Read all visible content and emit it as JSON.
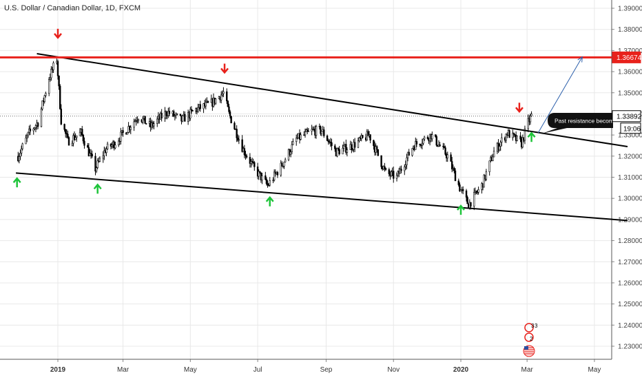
{
  "chart_data": {
    "type": "candlestick",
    "title": "U.S. Dollar / Canadian Dollar, 1D, FXCM",
    "y_axis": {
      "side": "right",
      "ticks": [
        "1.39000",
        "1.38000",
        "1.37000",
        "1.36000",
        "1.35000",
        "1.34000",
        "1.33000",
        "1.32000",
        "1.31000",
        "1.30000",
        "1.29000",
        "1.28000",
        "1.27000",
        "1.26000",
        "1.25000",
        "1.24000",
        "1.23000"
      ],
      "range": [
        1.2265,
        1.3935
      ]
    },
    "x_axis": {
      "ticks": [
        "2019",
        "Mar",
        "May",
        "Jul",
        "Sep",
        "Nov",
        "2020",
        "Mar",
        "May"
      ],
      "bold_ticks": [
        "2019",
        "2020"
      ]
    },
    "price_labels": {
      "resistance": "1.36674",
      "last": "1.33892",
      "countdown": "19:06"
    },
    "resistance_level": 1.36674,
    "last_price": 1.33892,
    "annotation": "Past resistance becomes",
    "badge_top": "3",
    "badge_bottom": "2",
    "price_path": [
      [
        "2018-11-26",
        1.32
      ],
      [
        "2018-12-06",
        1.331
      ],
      [
        "2018-12-14",
        1.336
      ],
      [
        "2018-12-24",
        1.357
      ],
      [
        "2018-12-31",
        1.366
      ],
      [
        "2019-01-04",
        1.337
      ],
      [
        "2019-01-10",
        1.327
      ],
      [
        "2019-01-22",
        1.331
      ],
      [
        "2019-02-04",
        1.314
      ],
      [
        "2019-02-13",
        1.323
      ],
      [
        "2019-02-21",
        1.326
      ],
      [
        "2019-03-05",
        1.333
      ],
      [
        "2019-03-15",
        1.339
      ],
      [
        "2019-03-26",
        1.334
      ],
      [
        "2019-04-10",
        1.341
      ],
      [
        "2019-04-23",
        1.337
      ],
      [
        "2019-05-06",
        1.342
      ],
      [
        "2019-05-20",
        1.345
      ],
      [
        "2019-05-31",
        1.35
      ],
      [
        "2019-06-05",
        1.34
      ],
      [
        "2019-06-18",
        1.323
      ],
      [
        "2019-06-28",
        1.314
      ],
      [
        "2019-07-10",
        1.306
      ],
      [
        "2019-07-22",
        1.315
      ],
      [
        "2019-08-05",
        1.328
      ],
      [
        "2019-08-20",
        1.332
      ],
      [
        "2019-08-28",
        1.332
      ],
      [
        "2019-09-10",
        1.322
      ],
      [
        "2019-09-25",
        1.325
      ],
      [
        "2019-10-10",
        1.33
      ],
      [
        "2019-10-25",
        1.312
      ],
      [
        "2019-11-04",
        1.31
      ],
      [
        "2019-11-19",
        1.325
      ],
      [
        "2019-12-05",
        1.33
      ],
      [
        "2019-12-20",
        1.32
      ],
      [
        "2019-12-31",
        1.305
      ],
      [
        "2020-01-08",
        1.297
      ],
      [
        "2020-01-20",
        1.306
      ],
      [
        "2020-01-31",
        1.322
      ],
      [
        "2020-02-12",
        1.331
      ],
      [
        "2020-02-25",
        1.326
      ],
      [
        "2020-03-02",
        1.336
      ],
      [
        "2020-03-05",
        1.339
      ]
    ],
    "trendlines": [
      {
        "name": "upper",
        "from": [
          "2018-12-13",
          1.3685
        ],
        "to": [
          "2020-05-31",
          1.3245
        ]
      },
      {
        "name": "lower",
        "from": [
          "2018-11-24",
          1.312
        ],
        "to": [
          "2020-05-31",
          1.2895
        ]
      }
    ],
    "projection": {
      "from": [
        "2020-03-11",
        1.331
      ],
      "to": [
        "2020-04-20",
        1.367
      ]
    },
    "markers": [
      {
        "type": "up",
        "date": "2018-11-25",
        "price": 1.3075
      },
      {
        "type": "down",
        "date": "2019-01-01",
        "price": 1.378
      },
      {
        "type": "up",
        "date": "2019-02-06",
        "price": 1.3045
      },
      {
        "type": "down",
        "date": "2019-06-01",
        "price": 1.3615
      },
      {
        "type": "up",
        "date": "2019-07-12",
        "price": 1.2985
      },
      {
        "type": "up",
        "date": "2020-01-01",
        "price": 1.2945
      },
      {
        "type": "down",
        "date": "2020-02-23",
        "price": 1.343
      },
      {
        "type": "up",
        "date": "2020-03-05",
        "price": 1.329
      }
    ],
    "colors": {
      "resistance": "#e8211b",
      "trendline": "#000000",
      "projection": "#2b5fab",
      "up_marker": "#1ec43a",
      "down_marker": "#e8211b",
      "candle": "#000000",
      "grid": "#e8e8e8"
    }
  }
}
